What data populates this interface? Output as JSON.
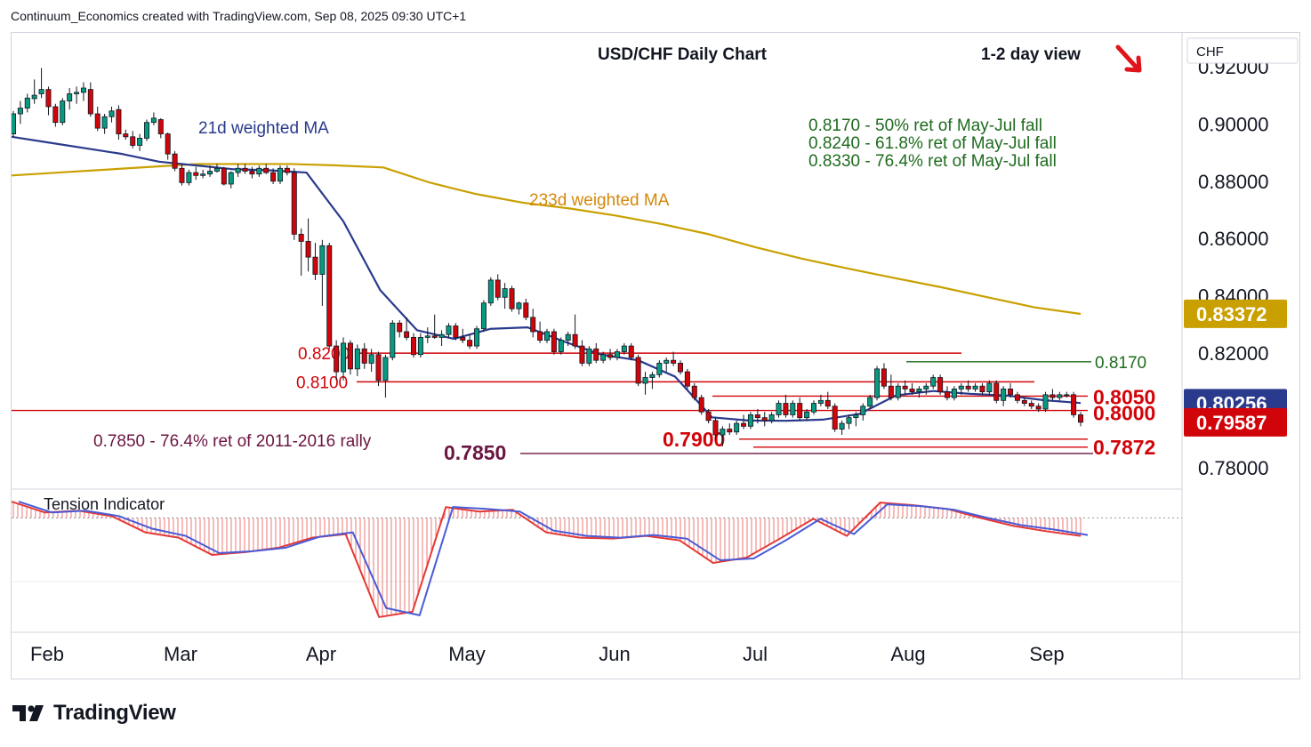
{
  "header": {
    "credit": "Continuum_Economics created with TradingView.com, Sep 08, 2025 09:30 UTC+1"
  },
  "footer": {
    "brand": "TradingView"
  },
  "colors": {
    "up_candle": "#089981",
    "down_candle": "#d1040a",
    "ma21": "#2a3a8c",
    "ma233": "#c9a000",
    "level": "#d1040a",
    "ret_text": "#1f6b1f",
    "rally_text": "#6b1541",
    "tension_fast": "#e53935",
    "tension_slow": "#4a5bd6"
  },
  "chart_data": {
    "type": "candlestick",
    "title": "USD/CHF Daily Chart",
    "view_label": "1-2 day view",
    "view_direction": "down",
    "currency": "CHF",
    "x_labels": [
      "Feb",
      "Mar",
      "Apr",
      "May",
      "Jun",
      "Jul",
      "Aug",
      "Sep"
    ],
    "y_ticks": [
      "0.92000",
      "0.90000",
      "0.88000",
      "0.86000",
      "0.84000",
      "0.82000",
      "0.80000",
      "0.78000"
    ],
    "y_range": [
      0.7735,
      0.9305
    ],
    "price_badges": [
      {
        "label": "0.83372",
        "value": 0.83372,
        "color": "#c9a000"
      },
      {
        "label": "0.80256",
        "value": 0.80256,
        "color": "#2a3a8c"
      },
      {
        "label": "0.79587",
        "value": 0.79587,
        "color": "#d1040a"
      }
    ],
    "annotations": {
      "ma21_label": "21d weighted MA",
      "ma233_label": "233d weighted MA",
      "retracements": [
        "0.8170 - 50% ret of May-Jul fall",
        "0.8240 - 61.8% ret of May-Jul fall",
        "0.8330 - 76.4% ret of May-Jul fall"
      ],
      "rally_note": "0.7850 - 76.4% ret of 2011-2016 rally"
    },
    "levels": [
      {
        "label": "0.8200",
        "value": 0.82
      },
      {
        "label": "0.8170",
        "value": 0.817
      },
      {
        "label": "0.8100",
        "value": 0.81
      },
      {
        "label": "0.8050",
        "value": 0.805
      },
      {
        "label": "0.8000",
        "value": 0.8
      },
      {
        "label": "0.7900",
        "value": 0.79
      },
      {
        "label": "0.7872",
        "value": 0.7872
      },
      {
        "label": "0.7850",
        "value": 0.785
      }
    ],
    "ma233": [
      0.882,
      0.883,
      0.884,
      0.885,
      0.886,
      0.886,
      0.886,
      0.8855,
      0.8848,
      0.8795,
      0.8755,
      0.8725,
      0.8705,
      0.868,
      0.865,
      0.8615,
      0.857,
      0.853,
      0.8495,
      0.8462,
      0.843,
      0.8395,
      0.836,
      0.8337
    ],
    "ma21": [
      0.8955,
      0.8935,
      0.8915,
      0.8895,
      0.8868,
      0.8855,
      0.8842,
      0.8838,
      0.883,
      0.866,
      0.842,
      0.828,
      0.825,
      0.8285,
      0.829,
      0.824,
      0.8195,
      0.8175,
      0.8118,
      0.7976,
      0.7965,
      0.7964,
      0.7968,
      0.7988,
      0.8053,
      0.8068,
      0.8058,
      0.8052,
      0.8036,
      0.8026
    ],
    "tension_panel": {
      "label": "Tension Indicator",
      "fast": [
        0.72,
        0.24,
        0.32,
        0.08,
        -0.64,
        -0.88,
        -1.64,
        -1.52,
        -1.32,
        -0.88,
        -0.72,
        -4.4,
        -4.16,
        0.48,
        0.28,
        0.36,
        -0.64,
        -0.88,
        -0.92,
        -0.8,
        -1.0,
        -2.0,
        -1.76,
        -0.92,
        -0.04,
        -0.8,
        0.68,
        0.56,
        0.4,
        0.0,
        -0.36,
        -0.6,
        -0.8
      ],
      "slow": [
        0.72,
        0.24,
        0.32,
        0.08,
        -0.48,
        -0.8,
        -1.56,
        -1.48,
        -1.32,
        -0.84,
        -0.64,
        -4.0,
        -4.32,
        0.48,
        0.4,
        0.28,
        -0.56,
        -0.8,
        -0.88,
        -0.76,
        -0.92,
        -1.88,
        -1.8,
        -0.96,
        -0.04,
        -0.72,
        0.6,
        0.52,
        0.36,
        0.0,
        -0.32,
        -0.52,
        -0.76
      ],
      "range": [
        -4.6,
        1.0
      ]
    },
    "candles": [
      [
        0.8965,
        0.9045,
        0.8955,
        0.9035
      ],
      [
        0.9035,
        0.908,
        0.9,
        0.9055
      ],
      [
        0.9055,
        0.9105,
        0.904,
        0.909
      ],
      [
        0.9088,
        0.9155,
        0.907,
        0.91
      ],
      [
        0.9105,
        0.9195,
        0.909,
        0.912
      ],
      [
        0.912,
        0.913,
        0.903,
        0.906
      ],
      [
        0.906,
        0.907,
        0.899,
        0.9005
      ],
      [
        0.9005,
        0.909,
        0.8995,
        0.908
      ],
      [
        0.908,
        0.9125,
        0.905,
        0.9105
      ],
      [
        0.9105,
        0.913,
        0.907,
        0.911
      ],
      [
        0.911,
        0.9145,
        0.908,
        0.9125
      ],
      [
        0.912,
        0.9145,
        0.9025,
        0.9035
      ],
      [
        0.9035,
        0.906,
        0.8975,
        0.8985
      ],
      [
        0.8985,
        0.9035,
        0.8965,
        0.9025
      ],
      [
        0.9025,
        0.906,
        0.9005,
        0.9045
      ],
      [
        0.905,
        0.9065,
        0.8945,
        0.8965
      ],
      [
        0.8965,
        0.898,
        0.8945,
        0.8955
      ],
      [
        0.8955,
        0.8975,
        0.8915,
        0.8925
      ],
      [
        0.8925,
        0.8965,
        0.8905,
        0.895
      ],
      [
        0.895,
        0.9015,
        0.894,
        0.9005
      ],
      [
        0.9005,
        0.904,
        0.8995,
        0.902
      ],
      [
        0.9015,
        0.902,
        0.895,
        0.8965
      ],
      [
        0.8965,
        0.897,
        0.8875,
        0.8895
      ],
      [
        0.8895,
        0.8905,
        0.8835,
        0.8845
      ],
      [
        0.8845,
        0.886,
        0.8785,
        0.8795
      ],
      [
        0.8795,
        0.884,
        0.8785,
        0.883
      ],
      [
        0.883,
        0.885,
        0.8805,
        0.882
      ],
      [
        0.882,
        0.884,
        0.881,
        0.8825
      ],
      [
        0.8825,
        0.8855,
        0.8815,
        0.8835
      ],
      [
        0.8835,
        0.886,
        0.883,
        0.8845
      ],
      [
        0.8845,
        0.885,
        0.8785,
        0.879
      ],
      [
        0.879,
        0.8835,
        0.8775,
        0.883
      ],
      [
        0.883,
        0.886,
        0.8815,
        0.8845
      ],
      [
        0.8845,
        0.886,
        0.8825,
        0.8835
      ],
      [
        0.8835,
        0.885,
        0.881,
        0.8825
      ],
      [
        0.8825,
        0.8855,
        0.8815,
        0.8845
      ],
      [
        0.8845,
        0.886,
        0.8825,
        0.883
      ],
      [
        0.883,
        0.8845,
        0.879,
        0.88
      ],
      [
        0.88,
        0.8855,
        0.879,
        0.8845
      ],
      [
        0.8845,
        0.8855,
        0.882,
        0.883
      ],
      [
        0.883,
        0.8845,
        0.8595,
        0.8615
      ],
      [
        0.8615,
        0.8635,
        0.847,
        0.859
      ],
      [
        0.859,
        0.867,
        0.8485,
        0.8535
      ],
      [
        0.8535,
        0.8585,
        0.8455,
        0.8475
      ],
      [
        0.8475,
        0.8595,
        0.8365,
        0.8575
      ],
      [
        0.8575,
        0.8585,
        0.8215,
        0.8225
      ],
      [
        0.8225,
        0.8245,
        0.8105,
        0.8135
      ],
      [
        0.8135,
        0.8255,
        0.8105,
        0.8235
      ],
      [
        0.8235,
        0.8245,
        0.8125,
        0.8145
      ],
      [
        0.8145,
        0.823,
        0.812,
        0.8215
      ],
      [
        0.8215,
        0.8235,
        0.8145,
        0.8165
      ],
      [
        0.8165,
        0.8215,
        0.8135,
        0.8195
      ],
      [
        0.8195,
        0.8205,
        0.8085,
        0.8105
      ],
      [
        0.8105,
        0.8195,
        0.8045,
        0.8185
      ],
      [
        0.8185,
        0.8315,
        0.8175,
        0.8305
      ],
      [
        0.8305,
        0.8315,
        0.8255,
        0.8275
      ],
      [
        0.8275,
        0.8325,
        0.8245,
        0.8255
      ],
      [
        0.8255,
        0.827,
        0.8185,
        0.8195
      ],
      [
        0.8195,
        0.827,
        0.8185,
        0.8255
      ],
      [
        0.8255,
        0.829,
        0.8235,
        0.826
      ],
      [
        0.826,
        0.8335,
        0.825,
        0.8255
      ],
      [
        0.8255,
        0.828,
        0.8225,
        0.8265
      ],
      [
        0.8265,
        0.8305,
        0.8255,
        0.8295
      ],
      [
        0.8295,
        0.8305,
        0.8245,
        0.8255
      ],
      [
        0.8255,
        0.8285,
        0.8235,
        0.8245
      ],
      [
        0.8245,
        0.8265,
        0.8215,
        0.8225
      ],
      [
        0.8225,
        0.8295,
        0.8215,
        0.8285
      ],
      [
        0.8285,
        0.8385,
        0.8275,
        0.8375
      ],
      [
        0.8375,
        0.8465,
        0.8365,
        0.8455
      ],
      [
        0.8455,
        0.8475,
        0.8385,
        0.8395
      ],
      [
        0.8395,
        0.8445,
        0.8355,
        0.8425
      ],
      [
        0.8425,
        0.8435,
        0.8345,
        0.8355
      ],
      [
        0.8355,
        0.838,
        0.8335,
        0.8375
      ],
      [
        0.8375,
        0.839,
        0.8315,
        0.8325
      ],
      [
        0.8325,
        0.8355,
        0.8255,
        0.8275
      ],
      [
        0.8275,
        0.831,
        0.8235,
        0.8245
      ],
      [
        0.8245,
        0.8285,
        0.8235,
        0.8275
      ],
      [
        0.8275,
        0.8285,
        0.8195,
        0.8205
      ],
      [
        0.8205,
        0.8255,
        0.8195,
        0.8245
      ],
      [
        0.8245,
        0.8275,
        0.8225,
        0.8265
      ],
      [
        0.8265,
        0.8335,
        0.8215,
        0.8225
      ],
      [
        0.8225,
        0.8245,
        0.8155,
        0.8165
      ],
      [
        0.8165,
        0.8225,
        0.8155,
        0.8215
      ],
      [
        0.8215,
        0.8235,
        0.8165,
        0.8175
      ],
      [
        0.8175,
        0.8205,
        0.8165,
        0.8195
      ],
      [
        0.8195,
        0.8215,
        0.8175,
        0.8185
      ],
      [
        0.8185,
        0.8215,
        0.8175,
        0.8205
      ],
      [
        0.8205,
        0.8235,
        0.8195,
        0.8225
      ],
      [
        0.8225,
        0.8235,
        0.8175,
        0.8185
      ],
      [
        0.8185,
        0.8195,
        0.8085,
        0.8095
      ],
      [
        0.8095,
        0.8135,
        0.8055,
        0.8115
      ],
      [
        0.8115,
        0.8135,
        0.8075,
        0.8125
      ],
      [
        0.8125,
        0.8175,
        0.8115,
        0.8165
      ],
      [
        0.8165,
        0.8185,
        0.8135,
        0.8175
      ],
      [
        0.8175,
        0.8205,
        0.8155,
        0.8165
      ],
      [
        0.8165,
        0.8175,
        0.8125,
        0.8135
      ],
      [
        0.8135,
        0.8145,
        0.8075,
        0.8085
      ],
      [
        0.8085,
        0.8095,
        0.8035,
        0.8045
      ],
      [
        0.8045,
        0.8055,
        0.7985,
        0.7995
      ],
      [
        0.7995,
        0.8005,
        0.7955,
        0.7965
      ],
      [
        0.7965,
        0.7975,
        0.7895,
        0.7915
      ],
      [
        0.7915,
        0.7945,
        0.7875,
        0.7935
      ],
      [
        0.7935,
        0.7955,
        0.7915,
        0.7925
      ],
      [
        0.7925,
        0.7965,
        0.7915,
        0.7955
      ],
      [
        0.7955,
        0.7985,
        0.7935,
        0.7945
      ],
      [
        0.7945,
        0.7995,
        0.7935,
        0.7985
      ],
      [
        0.7985,
        0.8005,
        0.7955,
        0.7975
      ],
      [
        0.7975,
        0.7995,
        0.7945,
        0.7965
      ],
      [
        0.7965,
        0.7995,
        0.7955,
        0.7985
      ],
      [
        0.7985,
        0.8035,
        0.7975,
        0.8025
      ],
      [
        0.8025,
        0.8055,
        0.7975,
        0.7985
      ],
      [
        0.7985,
        0.8035,
        0.7975,
        0.8025
      ],
      [
        0.8025,
        0.8045,
        0.7965,
        0.7975
      ],
      [
        0.7975,
        0.8005,
        0.7965,
        0.7995
      ],
      [
        0.7995,
        0.8035,
        0.7985,
        0.8025
      ],
      [
        0.8025,
        0.8055,
        0.8015,
        0.8035
      ],
      [
        0.8035,
        0.8065,
        0.8005,
        0.8015
      ],
      [
        0.8015,
        0.8025,
        0.7925,
        0.7935
      ],
      [
        0.7935,
        0.7965,
        0.7915,
        0.7955
      ],
      [
        0.7955,
        0.7985,
        0.7935,
        0.7975
      ],
      [
        0.7975,
        0.7995,
        0.7945,
        0.7985
      ],
      [
        0.7985,
        0.8025,
        0.7965,
        0.8015
      ],
      [
        0.8015,
        0.8055,
        0.8005,
        0.8045
      ],
      [
        0.8045,
        0.8155,
        0.8035,
        0.8145
      ],
      [
        0.8145,
        0.8165,
        0.8075,
        0.8085
      ],
      [
        0.8085,
        0.8125,
        0.8035,
        0.8045
      ],
      [
        0.8045,
        0.8095,
        0.8035,
        0.8085
      ],
      [
        0.8085,
        0.8105,
        0.8055,
        0.8075
      ],
      [
        0.8075,
        0.8095,
        0.8055,
        0.8065
      ],
      [
        0.8065,
        0.8085,
        0.8045,
        0.8075
      ],
      [
        0.8075,
        0.8095,
        0.8055,
        0.8085
      ],
      [
        0.8085,
        0.8125,
        0.8075,
        0.8115
      ],
      [
        0.8115,
        0.8125,
        0.8055,
        0.8065
      ],
      [
        0.8065,
        0.8085,
        0.8035,
        0.8045
      ],
      [
        0.8045,
        0.8085,
        0.8035,
        0.8075
      ],
      [
        0.8075,
        0.8095,
        0.8055,
        0.8085
      ],
      [
        0.8085,
        0.8105,
        0.8065,
        0.8075
      ],
      [
        0.8075,
        0.8095,
        0.8065,
        0.8085
      ],
      [
        0.8085,
        0.8095,
        0.8055,
        0.8065
      ],
      [
        0.8065,
        0.8105,
        0.8055,
        0.8095
      ],
      [
        0.8095,
        0.8105,
        0.8025,
        0.8035
      ],
      [
        0.8035,
        0.8085,
        0.8015,
        0.8075
      ],
      [
        0.8075,
        0.8095,
        0.8045,
        0.8055
      ],
      [
        0.8055,
        0.8065,
        0.8025,
        0.8035
      ],
      [
        0.8035,
        0.8045,
        0.8015,
        0.8025
      ],
      [
        0.8025,
        0.8035,
        0.8005,
        0.8015
      ],
      [
        0.8015,
        0.8025,
        0.7995,
        0.8005
      ],
      [
        0.8005,
        0.8065,
        0.7995,
        0.8055
      ],
      [
        0.8055,
        0.8075,
        0.8035,
        0.8045
      ],
      [
        0.8045,
        0.8065,
        0.8035,
        0.8055
      ],
      [
        0.8055,
        0.8065,
        0.8045,
        0.8055
      ],
      [
        0.8055,
        0.8065,
        0.7975,
        0.7985
      ],
      [
        0.7985,
        0.7995,
        0.7945,
        0.7959
      ]
    ]
  }
}
